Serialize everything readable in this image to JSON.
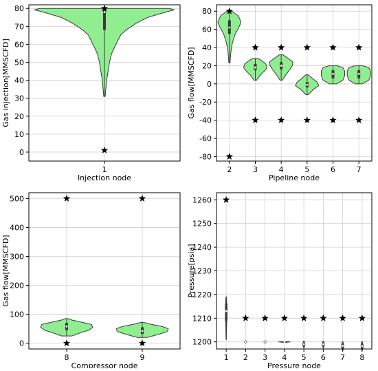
{
  "colors": {
    "violin_fill": "#90ee90",
    "violin_edge": "#3a3a3a",
    "grid": "#d0d0d0",
    "box": "#3a3a3a",
    "marker": "#000000"
  },
  "chart_data": [
    {
      "type": "violin",
      "xlabel": "Injection node",
      "ylabel": "Gas injection[MMSCFD]",
      "ylim": [
        -5,
        82
      ],
      "yticks": [
        0,
        10,
        20,
        30,
        40,
        50,
        60,
        70,
        80
      ],
      "categories": [
        "1"
      ],
      "grid": true,
      "violins": [
        {
          "x": "1",
          "q1": 68,
          "median": 78,
          "q3": 80,
          "whisker_low": 31,
          "whisker_high": 80,
          "profile": [
            [
              31,
              0.01
            ],
            [
              40,
              0.03
            ],
            [
              50,
              0.07
            ],
            [
              55,
              0.1
            ],
            [
              60,
              0.16
            ],
            [
              65,
              0.22
            ],
            [
              68,
              0.3
            ],
            [
              72,
              0.45
            ],
            [
              75,
              0.6
            ],
            [
              78,
              0.85
            ],
            [
              79.5,
              1.0
            ],
            [
              80,
              0.9
            ]
          ]
        }
      ],
      "limits": [
        {
          "x": "1",
          "min": 1,
          "max": 80
        }
      ]
    },
    {
      "type": "violin",
      "xlabel": "Pipeline node",
      "ylabel": "Gas flow[MMSCFD]",
      "ylim": [
        -85,
        87
      ],
      "yticks": [
        -80,
        -60,
        -40,
        -20,
        0,
        20,
        40,
        60,
        80
      ],
      "categories": [
        "2",
        "3",
        "4",
        "5",
        "6",
        "7"
      ],
      "grid": true,
      "violins": [
        {
          "x": "2",
          "q1": 55,
          "median": 62,
          "q3": 70,
          "whisker_low": 23,
          "whisker_high": 80,
          "profile": [
            [
              23,
              0.05
            ],
            [
              35,
              0.12
            ],
            [
              45,
              0.25
            ],
            [
              55,
              0.5
            ],
            [
              62,
              0.8
            ],
            [
              68,
              1.0
            ],
            [
              75,
              0.75
            ],
            [
              80,
              0.2
            ]
          ]
        },
        {
          "x": "3",
          "q1": 15,
          "median": 18,
          "q3": 22,
          "whisker_low": 4,
          "whisker_high": 28,
          "profile": [
            [
              4,
              0.1
            ],
            [
              10,
              0.45
            ],
            [
              15,
              0.85
            ],
            [
              18,
              1.0
            ],
            [
              22,
              0.9
            ],
            [
              26,
              0.5
            ],
            [
              28,
              0.2
            ]
          ]
        },
        {
          "x": "4",
          "q1": 16,
          "median": 20,
          "q3": 24,
          "whisker_low": 4,
          "whisker_high": 32,
          "profile": [
            [
              4,
              0.1
            ],
            [
              10,
              0.4
            ],
            [
              15,
              0.7
            ],
            [
              20,
              0.95
            ],
            [
              24,
              1.0
            ],
            [
              28,
              0.6
            ],
            [
              32,
              0.15
            ]
          ]
        },
        {
          "x": "5",
          "q1": -4,
          "median": -1,
          "q3": 2,
          "whisker_low": -12,
          "whisker_high": 10,
          "profile": [
            [
              -12,
              0.1
            ],
            [
              -6,
              0.55
            ],
            [
              -2,
              1.0
            ],
            [
              2,
              0.85
            ],
            [
              6,
              0.45
            ],
            [
              10,
              0.1
            ]
          ]
        },
        {
          "x": "6",
          "q1": 6,
          "median": 11,
          "q3": 15,
          "whisker_low": 0,
          "whisker_high": 20,
          "profile": [
            [
              0,
              0.3
            ],
            [
              4,
              0.85
            ],
            [
              9,
              1.0
            ],
            [
              14,
              1.0
            ],
            [
              18,
              0.85
            ],
            [
              20,
              0.3
            ]
          ]
        },
        {
          "x": "7",
          "q1": 6,
          "median": 11,
          "q3": 15,
          "whisker_low": 0,
          "whisker_high": 20,
          "profile": [
            [
              0,
              0.3
            ],
            [
              4,
              0.85
            ],
            [
              9,
              1.0
            ],
            [
              14,
              1.0
            ],
            [
              18,
              0.85
            ],
            [
              20,
              0.3
            ]
          ]
        }
      ],
      "limits": [
        {
          "x": "2",
          "min": -80,
          "max": 80
        },
        {
          "x": "3",
          "min": -40,
          "max": 40
        },
        {
          "x": "4",
          "min": -40,
          "max": 40
        },
        {
          "x": "5",
          "min": -40,
          "max": 40
        },
        {
          "x": "6",
          "min": -40,
          "max": 40
        },
        {
          "x": "7",
          "min": -40,
          "max": 40
        }
      ]
    },
    {
      "type": "violin",
      "xlabel": "Compressor node",
      "ylabel": "Gas flow[MMSCFD]",
      "ylim": [
        -20,
        520
      ],
      "yticks": [
        0,
        100,
        200,
        300,
        400,
        500
      ],
      "categories": [
        "8",
        "9"
      ],
      "grid": true,
      "violins": [
        {
          "x": "8",
          "q1": 45,
          "median": 58,
          "q3": 70,
          "whisker_low": 25,
          "whisker_high": 85,
          "profile": [
            [
              25,
              0.2
            ],
            [
              35,
              0.5
            ],
            [
              45,
              0.85
            ],
            [
              55,
              1.0
            ],
            [
              65,
              0.95
            ],
            [
              72,
              0.6
            ],
            [
              80,
              0.2
            ],
            [
              85,
              0.05
            ]
          ]
        },
        {
          "x": "9",
          "q1": 32,
          "median": 42,
          "q3": 55,
          "whisker_low": 20,
          "whisker_high": 72,
          "profile": [
            [
              20,
              0.2
            ],
            [
              30,
              0.6
            ],
            [
              40,
              0.95
            ],
            [
              50,
              1.0
            ],
            [
              58,
              0.75
            ],
            [
              66,
              0.3
            ],
            [
              72,
              0.05
            ]
          ]
        }
      ],
      "limits": [
        {
          "x": "8",
          "min": 0,
          "max": 500
        },
        {
          "x": "9",
          "min": 0,
          "max": 500
        }
      ]
    },
    {
      "type": "violin",
      "xlabel": "Pressure node",
      "ylabel": "Pressure[psia]",
      "ylim": [
        1197,
        1263
      ],
      "yticks": [
        1200,
        1210,
        1220,
        1230,
        1240,
        1250,
        1260
      ],
      "categories": [
        "1",
        "2",
        "3",
        "4",
        "5",
        "6",
        "7",
        "8"
      ],
      "grid": true,
      "violins": [
        {
          "x": "1",
          "q1": 1209,
          "median": 1213,
          "q3": 1216,
          "whisker_low": 1201,
          "whisker_high": 1219,
          "width_scale": 0.08,
          "profile": [
            [
              1201,
              0.2
            ],
            [
              1206,
              0.5
            ],
            [
              1210,
              0.9
            ],
            [
              1213,
              1.0
            ],
            [
              1216,
              0.8
            ],
            [
              1219,
              0.3
            ]
          ]
        },
        {
          "x": "2",
          "q1": 1199.7,
          "median": 1200,
          "q3": 1200.3,
          "whisker_low": 1199.5,
          "whisker_high": 1200.5,
          "width_scale": 0.12,
          "profile": [
            [
              1199.5,
              0.3
            ],
            [
              1200,
              1.0
            ],
            [
              1200.5,
              0.3
            ]
          ]
        },
        {
          "x": "3",
          "q1": 1199.7,
          "median": 1200,
          "q3": 1200.3,
          "whisker_low": 1199.5,
          "whisker_high": 1200.5,
          "width_scale": 0.12,
          "profile": [
            [
              1199.5,
              0.3
            ],
            [
              1200,
              1.0
            ],
            [
              1200.5,
              0.3
            ]
          ]
        },
        {
          "x": "4",
          "q1": 1199.9,
          "median": 1200,
          "q3": 1200.1,
          "whisker_low": 1199.8,
          "whisker_high": 1200.2,
          "width_scale": 0.6,
          "profile": [
            [
              1199.8,
              0.3
            ],
            [
              1200,
              1.0
            ],
            [
              1200.2,
              0.3
            ]
          ]
        },
        {
          "x": "5",
          "q1": 1198.3,
          "median": 1199,
          "q3": 1199.7,
          "whisker_low": 1197.5,
          "whisker_high": 1200.3,
          "width_scale": 0.12,
          "profile": [
            [
              1197.5,
              0.3
            ],
            [
              1199,
              1.0
            ],
            [
              1200.3,
              0.3
            ]
          ]
        },
        {
          "x": "6",
          "q1": 1198.3,
          "median": 1199,
          "q3": 1199.7,
          "whisker_low": 1197.5,
          "whisker_high": 1200.3,
          "width_scale": 0.12,
          "profile": [
            [
              1197.5,
              0.3
            ],
            [
              1199,
              1.0
            ],
            [
              1200.3,
              0.3
            ]
          ]
        },
        {
          "x": "7",
          "q1": 1197.6,
          "median": 1198.3,
          "q3": 1199,
          "whisker_low": 1196.5,
          "whisker_high": 1200,
          "width_scale": 0.12,
          "profile": [
            [
              1196.5,
              0.3
            ],
            [
              1198.3,
              1.0
            ],
            [
              1200,
              0.3
            ]
          ]
        },
        {
          "x": "8",
          "q1": 1197.5,
          "median": 1198.2,
          "q3": 1199,
          "whisker_low": 1196.5,
          "whisker_high": 1200,
          "width_scale": 0.12,
          "profile": [
            [
              1196.5,
              0.3
            ],
            [
              1198.2,
              1.0
            ],
            [
              1200,
              0.3
            ]
          ]
        }
      ],
      "limits": [
        {
          "x": "1",
          "min": null,
          "max": 1260
        },
        {
          "x": "2",
          "min": null,
          "max": 1210
        },
        {
          "x": "3",
          "min": null,
          "max": 1210
        },
        {
          "x": "4",
          "min": null,
          "max": 1210
        },
        {
          "x": "5",
          "min": null,
          "max": 1210
        },
        {
          "x": "6",
          "min": null,
          "max": 1210
        },
        {
          "x": "7",
          "min": null,
          "max": 1210
        },
        {
          "x": "8",
          "min": null,
          "max": 1210
        }
      ]
    }
  ]
}
